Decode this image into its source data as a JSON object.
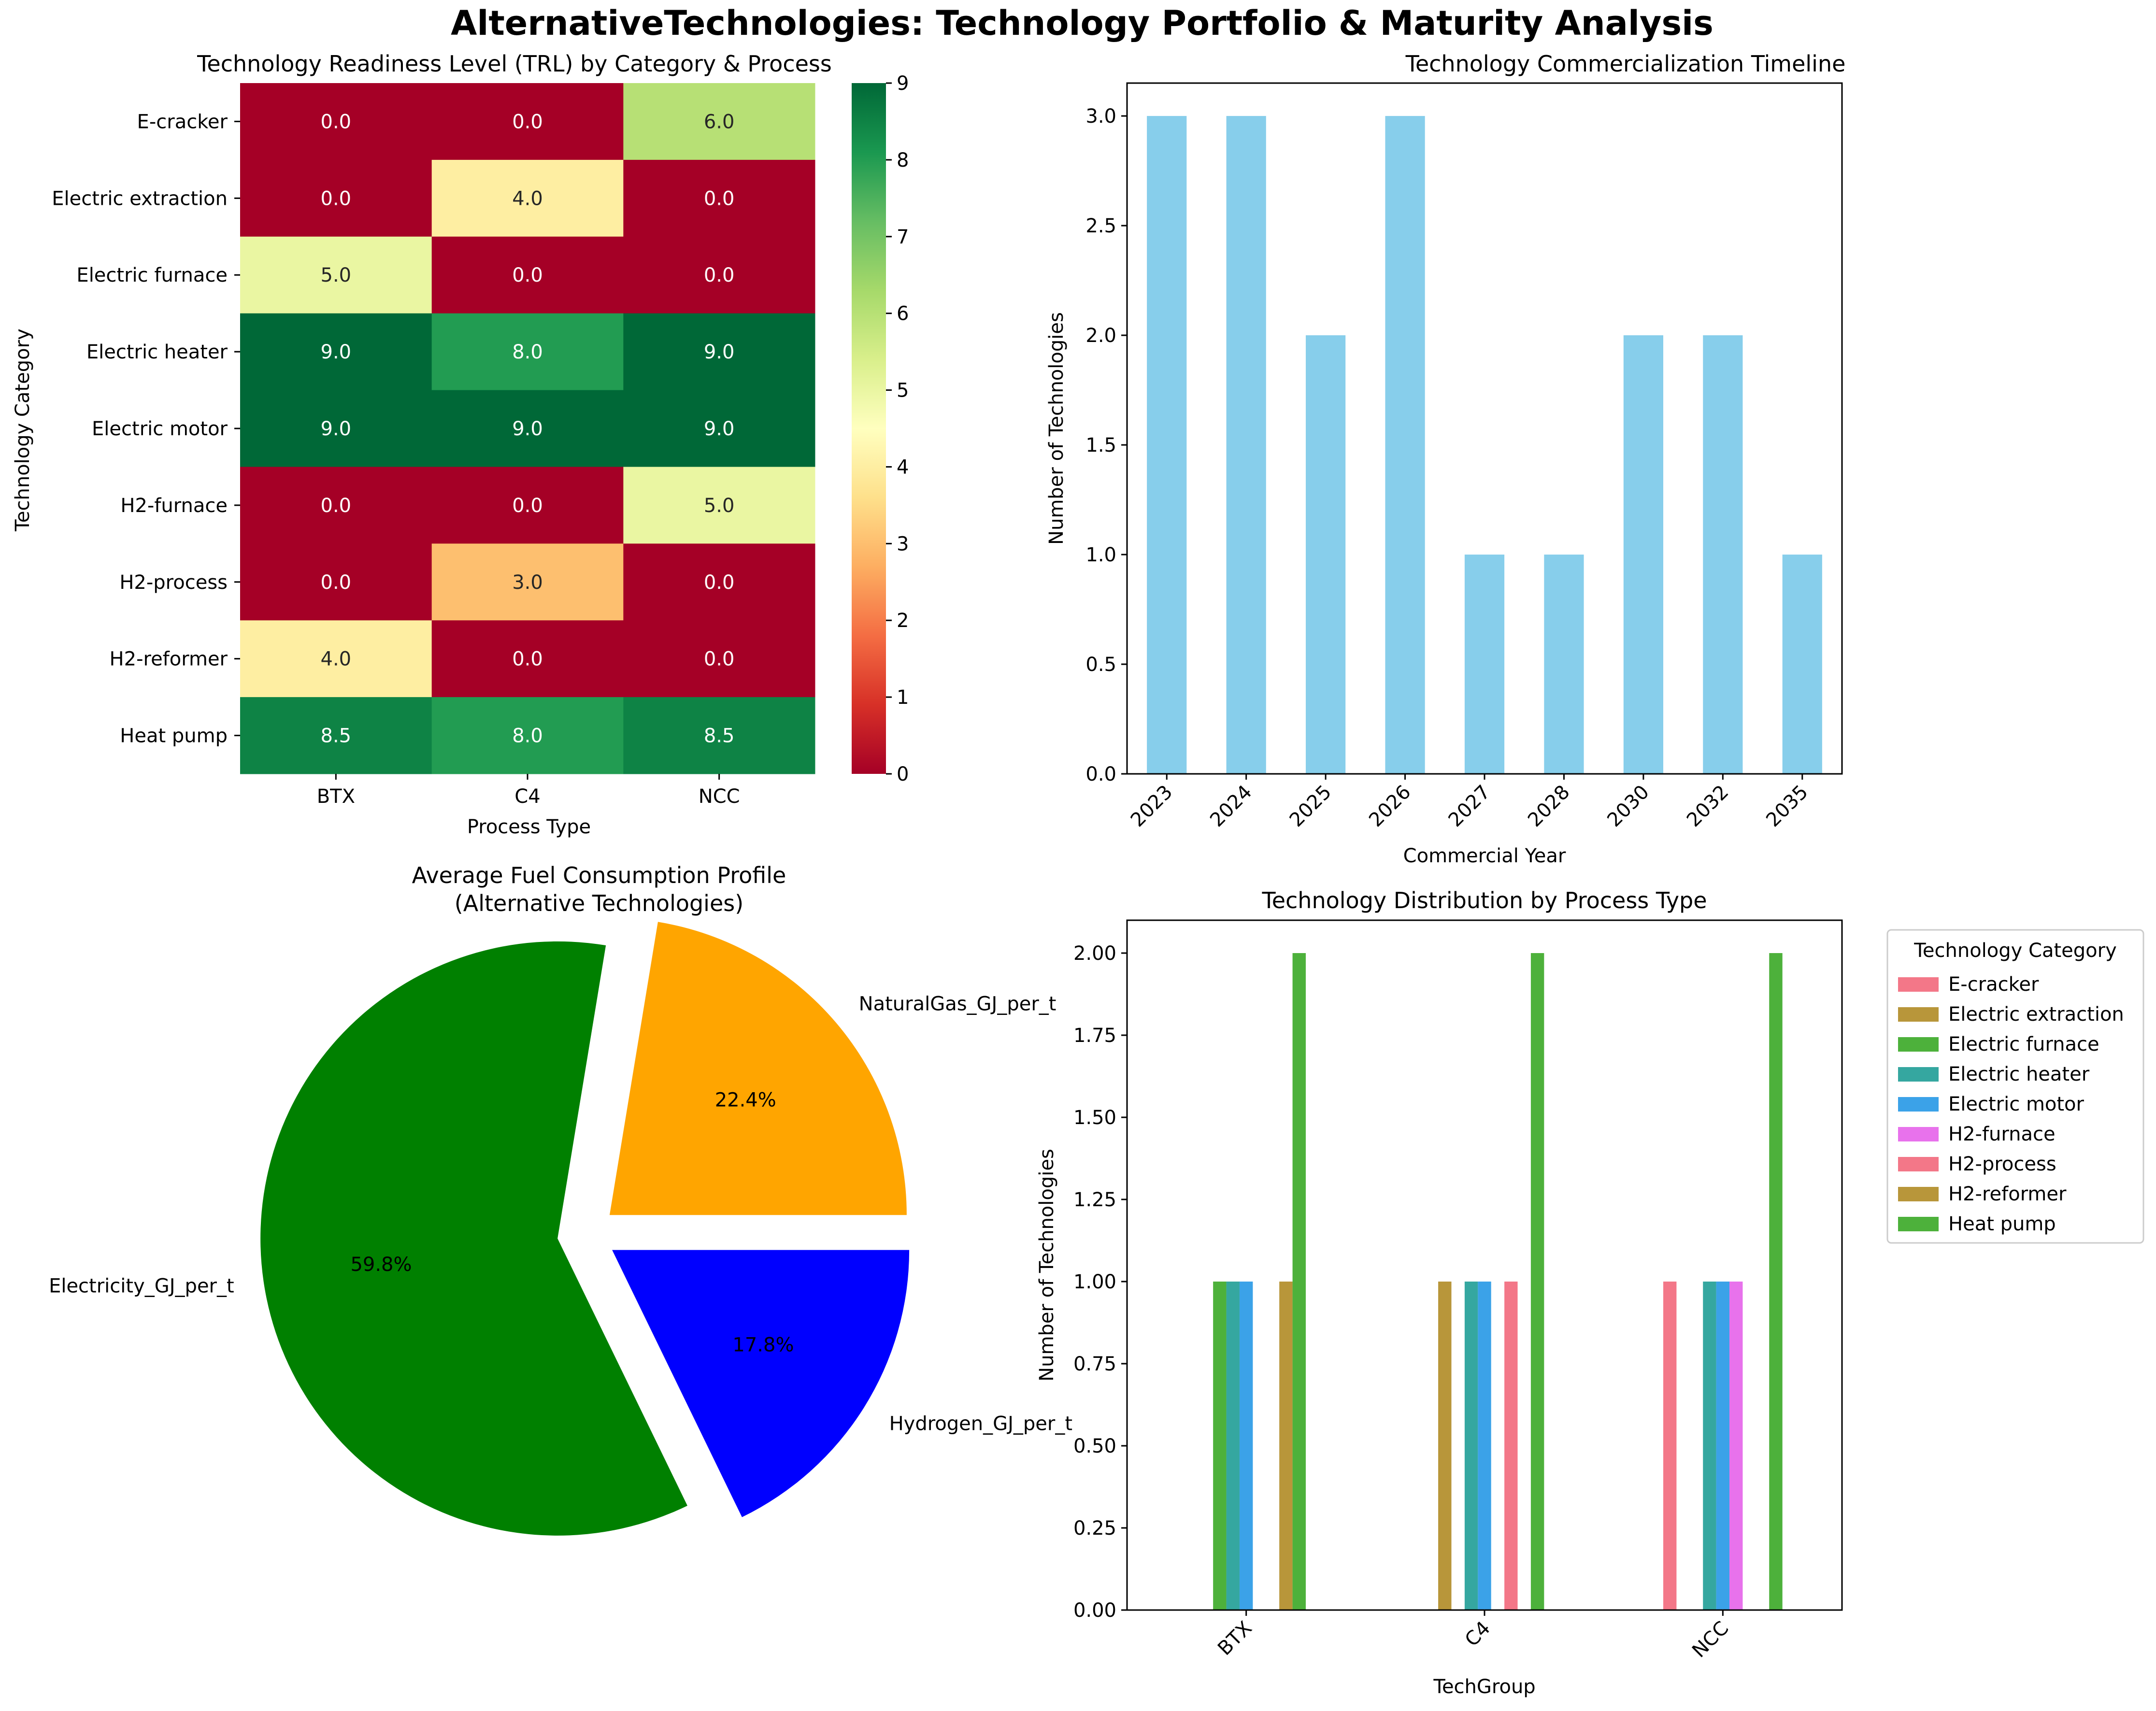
{
  "suptitle": "AlternativeTechnologies: Technology Portfolio & Maturity Analysis",
  "chart_data": [
    {
      "type": "heatmap",
      "title": "Technology Readiness Level (TRL) by Category & Process",
      "xlabel": "Process Type",
      "ylabel": "Technology Category",
      "x": [
        "BTX",
        "C4",
        "NCC"
      ],
      "y": [
        "E-cracker",
        "Electric extraction",
        "Electric furnace",
        "Electric heater",
        "Electric motor",
        "H2-furnace",
        "H2-process",
        "H2-reformer",
        "Heat pump"
      ],
      "values": [
        [
          0.0,
          0.0,
          6.0
        ],
        [
          0.0,
          4.0,
          0.0
        ],
        [
          5.0,
          0.0,
          0.0
        ],
        [
          9.0,
          8.0,
          9.0
        ],
        [
          9.0,
          9.0,
          9.0
        ],
        [
          0.0,
          0.0,
          5.0
        ],
        [
          0.0,
          3.0,
          0.0
        ],
        [
          4.0,
          0.0,
          0.0
        ],
        [
          8.5,
          8.0,
          8.5
        ]
      ],
      "value_labels": [
        [
          "0.0",
          "0.0",
          "6.0"
        ],
        [
          "0.0",
          "4.0",
          "0.0"
        ],
        [
          "5.0",
          "0.0",
          "0.0"
        ],
        [
          "9.0",
          "8.0",
          "9.0"
        ],
        [
          "9.0",
          "9.0",
          "9.0"
        ],
        [
          "0.0",
          "0.0",
          "5.0"
        ],
        [
          "0.0",
          "3.0",
          "0.0"
        ],
        [
          "4.0",
          "0.0",
          "0.0"
        ],
        [
          "8.5",
          "8.0",
          "8.5"
        ]
      ],
      "colorbar": {
        "range": [
          0,
          9
        ],
        "ticks": [
          "0",
          "1",
          "2",
          "3",
          "4",
          "5",
          "6",
          "7",
          "8",
          "9"
        ],
        "colormap": "RdYlGn"
      }
    },
    {
      "type": "bar",
      "title": "Technology Commercialization Timeline",
      "xlabel": "Commercial Year",
      "ylabel": "Number of Technologies",
      "categories": [
        "2023",
        "2024",
        "2025",
        "2026",
        "2027",
        "2028",
        "2030",
        "2032",
        "2035"
      ],
      "values": [
        3,
        3,
        2,
        3,
        1,
        1,
        2,
        2,
        1
      ],
      "ylim": [
        0,
        3.15
      ],
      "yticks": [
        "0.0",
        "0.5",
        "1.0",
        "1.5",
        "2.0",
        "2.5",
        "3.0"
      ],
      "color": "#87CEEB"
    },
    {
      "type": "pie",
      "title": "Average Fuel Consumption Profile",
      "subtitle": "(Alternative Technologies)",
      "slices": [
        {
          "label": "NaturalGas_GJ_per_t",
          "value": 22.4,
          "pct_label": "22.4%",
          "color": "#FFA500"
        },
        {
          "label": "Electricity_GJ_per_t",
          "value": 59.8,
          "pct_label": "59.8%",
          "color": "#008000"
        },
        {
          "label": "Hydrogen_GJ_per_t",
          "value": 17.8,
          "pct_label": "17.8%",
          "color": "#0000FF"
        }
      ]
    },
    {
      "type": "bar",
      "title": "Technology Distribution by Process Type",
      "xlabel": "TechGroup",
      "ylabel": "Number of Technologies",
      "categories": [
        "BTX",
        "C4",
        "NCC"
      ],
      "ylim": [
        0,
        2.1
      ],
      "yticks": [
        "0.00",
        "0.25",
        "0.50",
        "0.75",
        "1.00",
        "1.25",
        "1.50",
        "1.75",
        "2.00"
      ],
      "legend_title": "Technology Category",
      "legend_position": "outside right",
      "series": [
        {
          "name": "E-cracker",
          "values": [
            0,
            0,
            1
          ],
          "color": "#F37788"
        },
        {
          "name": "Electric extraction",
          "values": [
            0,
            1,
            0
          ],
          "color": "#B8963A"
        },
        {
          "name": "Electric furnace",
          "values": [
            1,
            0,
            0
          ],
          "color": "#4DB13B"
        },
        {
          "name": "Electric heater",
          "values": [
            1,
            1,
            1
          ],
          "color": "#35A7A0"
        },
        {
          "name": "Electric motor",
          "values": [
            1,
            1,
            1
          ],
          "color": "#3BA2E8"
        },
        {
          "name": "H2-furnace",
          "values": [
            0,
            0,
            1
          ],
          "color": "#E872EC"
        },
        {
          "name": "H2-process",
          "values": [
            0,
            1,
            0
          ],
          "color": "#F37788"
        },
        {
          "name": "H2-reformer",
          "values": [
            1,
            0,
            0
          ],
          "color": "#B8963A"
        },
        {
          "name": "Heat pump",
          "values": [
            2,
            2,
            2
          ],
          "color": "#4DB13B"
        }
      ]
    }
  ]
}
